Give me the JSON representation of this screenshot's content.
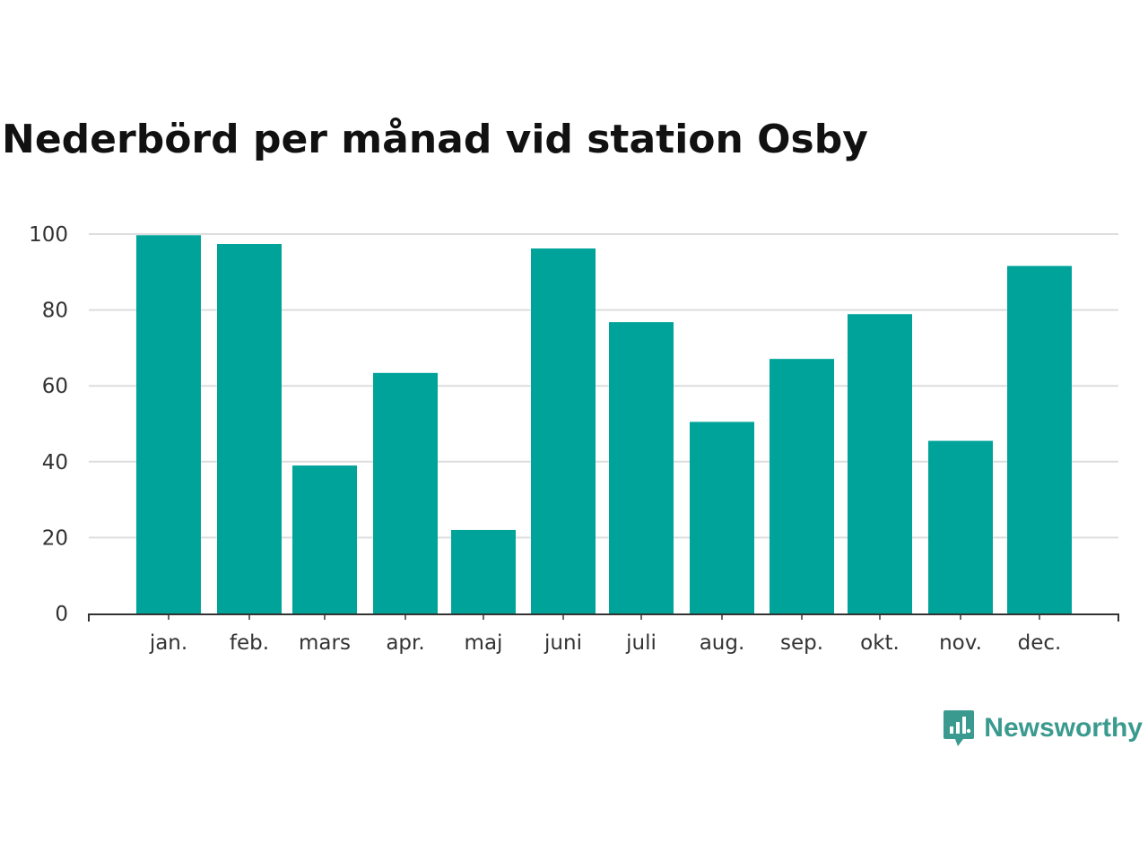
{
  "chart_data": {
    "type": "bar",
    "title": "Nederbörd per månad vid station Osby",
    "xlabel": "",
    "ylabel": "",
    "categories": [
      "jan.",
      "feb.",
      "mars",
      "apr.",
      "maj",
      "juni",
      "juli",
      "aug.",
      "sep.",
      "okt.",
      "nov.",
      "dec."
    ],
    "values": [
      99.7,
      97.4,
      39.0,
      63.4,
      22.0,
      96.2,
      76.8,
      50.5,
      67.1,
      78.9,
      45.5,
      91.6
    ],
    "ylim": [
      0,
      100
    ],
    "yticks": [
      0,
      20,
      40,
      60,
      80,
      100
    ],
    "grid": true,
    "legend": "none",
    "bar_color": "#00a39a"
  },
  "branding": {
    "name": "Newsworthy",
    "logo_icon": "chart-speech-bubble-icon",
    "color": "#3a9a8f"
  }
}
